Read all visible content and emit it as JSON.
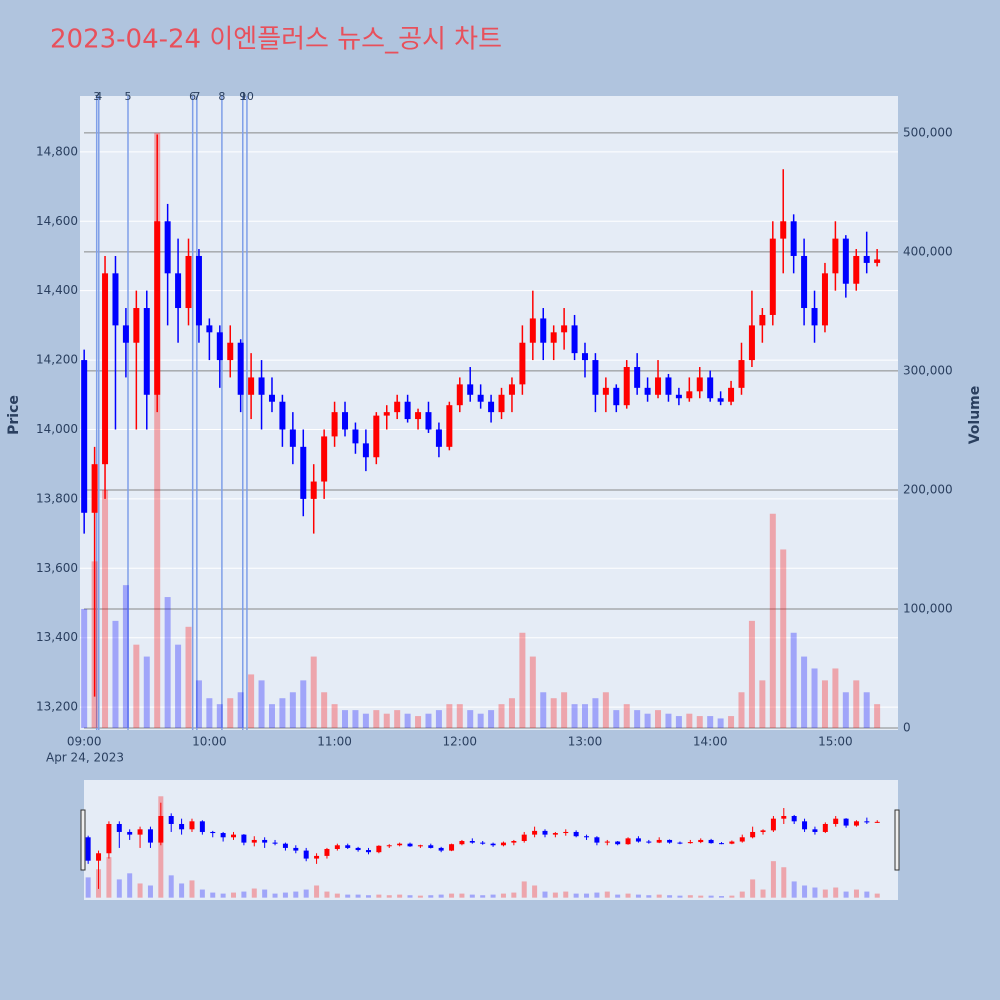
{
  "chart_data": {
    "type": "candlestick",
    "title": "2023-04-24 이엔플러스 뉴스_공시 차트",
    "y_title": "Price",
    "y2_title": "Volume",
    "x_date_label": "Apr 24, 2023",
    "increasing_color": "#ff0000",
    "decreasing_color": "#0000ff",
    "news_color": "#7f9fe8",
    "xlim": [
      "08:58",
      "15:30"
    ],
    "xticks": [
      "09:00",
      "10:00",
      "11:00",
      "12:00",
      "13:00",
      "14:00",
      "15:00"
    ],
    "ylim": [
      13134,
      14961
    ],
    "yticks": [
      {
        "value": 13200,
        "label": "13,200"
      },
      {
        "value": 13400,
        "label": "13,400"
      },
      {
        "value": 13600,
        "label": "13,600"
      },
      {
        "value": 13800,
        "label": "13,800"
      },
      {
        "value": 14000,
        "label": "14,000"
      },
      {
        "value": 14200,
        "label": "14,200"
      },
      {
        "value": 14400,
        "label": "14,400"
      },
      {
        "value": 14600,
        "label": "14,600"
      },
      {
        "value": 14800,
        "label": "14,800"
      }
    ],
    "y2lim": [
      -1700,
      531000
    ],
    "y2ticks": [
      0,
      {
        "value": 100000,
        "label": "100,000"
      },
      {
        "value": 200000,
        "label": "200,000"
      },
      {
        "value": 300000,
        "label": "300,000"
      },
      {
        "value": 400000,
        "label": "400,000"
      },
      {
        "value": 500000,
        "label": "500,000"
      }
    ],
    "news": [
      {
        "time": "09:06",
        "label": "3"
      },
      {
        "time": "09:07",
        "label": "4"
      },
      {
        "time": "09:21",
        "label": "5"
      },
      {
        "time": "09:52",
        "label": "6"
      },
      {
        "time": "09:54",
        "label": "7"
      },
      {
        "time": "10:06",
        "label": "8"
      },
      {
        "time": "10:16",
        "label": "9"
      },
      {
        "time": "10:18",
        "label": "10"
      }
    ],
    "x": [
      "09:00",
      "09:05",
      "09:10",
      "09:15",
      "09:20",
      "09:25",
      "09:30",
      "09:35",
      "09:40",
      "09:45",
      "09:50",
      "09:55",
      "10:00",
      "10:05",
      "10:10",
      "10:15",
      "10:20",
      "10:25",
      "10:30",
      "10:35",
      "10:40",
      "10:45",
      "10:50",
      "10:55",
      "11:00",
      "11:05",
      "11:10",
      "11:15",
      "11:20",
      "11:25",
      "11:30",
      "11:35",
      "11:40",
      "11:45",
      "11:50",
      "11:55",
      "12:00",
      "12:05",
      "12:10",
      "12:15",
      "12:20",
      "12:25",
      "12:30",
      "12:35",
      "12:40",
      "12:45",
      "12:50",
      "12:55",
      "13:00",
      "13:05",
      "13:10",
      "13:15",
      "13:20",
      "13:25",
      "13:30",
      "13:35",
      "13:40",
      "13:45",
      "13:50",
      "13:55",
      "14:00",
      "14:05",
      "14:10",
      "14:15",
      "14:20",
      "14:25",
      "14:30",
      "14:35",
      "14:40",
      "14:45",
      "14:50",
      "14:55",
      "15:00",
      "15:05",
      "15:10",
      "15:15",
      "15:20"
    ],
    "open": [
      14200,
      13760,
      13900,
      14450,
      14300,
      14250,
      14350,
      14100,
      14600,
      14450,
      14350,
      14500,
      14300,
      14280,
      14200,
      14250,
      14100,
      14150,
      14100,
      14080,
      14000,
      13950,
      13800,
      13850,
      13980,
      14050,
      14000,
      13960,
      13920,
      14040,
      14050,
      14080,
      14030,
      14050,
      14000,
      13950,
      14070,
      14130,
      14100,
      14080,
      14050,
      14100,
      14130,
      14250,
      14320,
      14250,
      14280,
      14300,
      14220,
      14200,
      14100,
      14120,
      14070,
      14180,
      14120,
      14100,
      14150,
      14100,
      14090,
      14110,
      14150,
      14090,
      14080,
      14120,
      14200,
      14300,
      14330,
      14550,
      14600,
      14500,
      14350,
      14300,
      14450,
      14550,
      14420,
      14500,
      14480
    ],
    "high": [
      14230,
      13950,
      14500,
      14500,
      14350,
      14400,
      14400,
      14850,
      14650,
      14550,
      14550,
      14520,
      14320,
      14300,
      14300,
      14260,
      14220,
      14200,
      14150,
      14100,
      14050,
      14000,
      13900,
      14000,
      14080,
      14080,
      14020,
      14000,
      14050,
      14070,
      14100,
      14100,
      14060,
      14080,
      14020,
      14080,
      14150,
      14180,
      14130,
      14100,
      14120,
      14150,
      14300,
      14400,
      14350,
      14300,
      14350,
      14330,
      14250,
      14220,
      14150,
      14130,
      14200,
      14220,
      14150,
      14200,
      14160,
      14120,
      14150,
      14180,
      14170,
      14110,
      14140,
      14250,
      14400,
      14350,
      14600,
      14750,
      14620,
      14550,
      14400,
      14480,
      14600,
      14560,
      14520,
      14570,
      14520
    ],
    "low": [
      13700,
      13230,
      13800,
      14000,
      14150,
      14000,
      14000,
      14050,
      14300,
      14250,
      14300,
      14250,
      14200,
      14120,
      14150,
      14050,
      14030,
      14000,
      14050,
      13950,
      13900,
      13750,
      13700,
      13800,
      13950,
      13980,
      13930,
      13880,
      13900,
      14000,
      14030,
      14020,
      14000,
      13990,
      13920,
      13940,
      14050,
      14080,
      14060,
      14020,
      14030,
      14050,
      14100,
      14200,
      14200,
      14200,
      14230,
      14200,
      14150,
      14050,
      14050,
      14050,
      14060,
      14100,
      14080,
      14090,
      14080,
      14070,
      14080,
      14090,
      14080,
      14070,
      14070,
      14100,
      14180,
      14250,
      14300,
      14450,
      14450,
      14300,
      14250,
      14280,
      14400,
      14380,
      14400,
      14450,
      14470
    ],
    "close": [
      13760,
      13900,
      14450,
      14300,
      14250,
      14350,
      14100,
      14600,
      14450,
      14350,
      14500,
      14300,
      14280,
      14200,
      14250,
      14100,
      14150,
      14100,
      14080,
      14000,
      13950,
      13800,
      13850,
      13980,
      14050,
      14000,
      13960,
      13920,
      14040,
      14050,
      14080,
      14030,
      14050,
      14000,
      13950,
      14070,
      14130,
      14100,
      14080,
      14050,
      14100,
      14130,
      14250,
      14320,
      14250,
      14280,
      14300,
      14220,
      14200,
      14100,
      14120,
      14070,
      14180,
      14120,
      14100,
      14150,
      14100,
      14090,
      14110,
      14150,
      14090,
      14080,
      14120,
      14200,
      14300,
      14330,
      14550,
      14600,
      14500,
      14350,
      14300,
      14450,
      14550,
      14420,
      14500,
      14480,
      14490
    ],
    "volume": [
      100000,
      140000,
      200000,
      90000,
      120000,
      70000,
      60000,
      500000,
      110000,
      70000,
      85000,
      40000,
      25000,
      20000,
      25000,
      30000,
      45000,
      40000,
      20000,
      25000,
      30000,
      40000,
      60000,
      30000,
      20000,
      15000,
      15000,
      12000,
      15000,
      12000,
      15000,
      12000,
      10000,
      12000,
      15000,
      20000,
      20000,
      15000,
      12000,
      15000,
      20000,
      25000,
      80000,
      60000,
      30000,
      25000,
      30000,
      20000,
      20000,
      25000,
      30000,
      15000,
      20000,
      15000,
      12000,
      15000,
      12000,
      10000,
      12000,
      10000,
      10000,
      8000,
      10000,
      30000,
      90000,
      40000,
      180000,
      150000,
      80000,
      60000,
      50000,
      40000,
      50000,
      30000,
      40000,
      30000,
      20000
    ]
  }
}
